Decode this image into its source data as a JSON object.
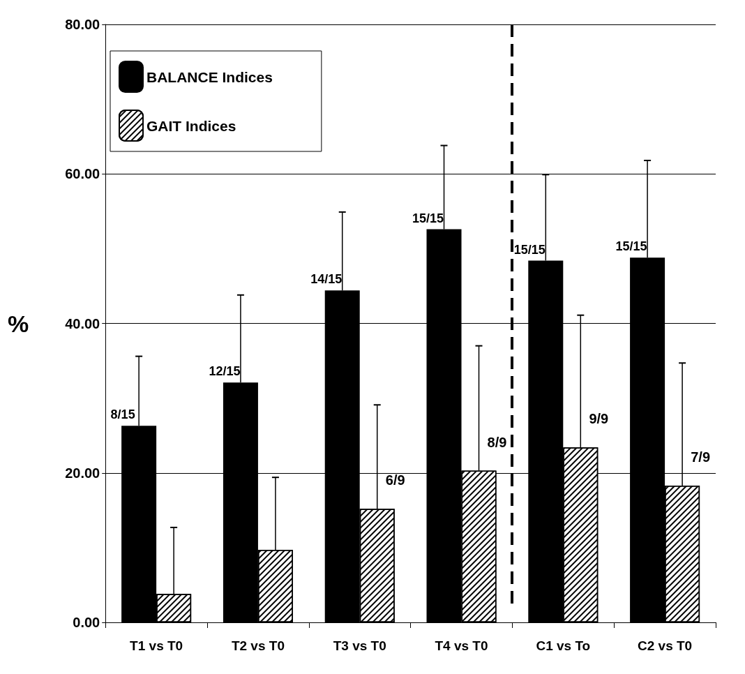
{
  "chart_data": {
    "type": "bar",
    "ylabel": "%",
    "categories": [
      "T1 vs T0",
      "T2 vs T0",
      "T3 vs T0",
      "T4 vs T0",
      "C1 vs To",
      "C2 vs T0"
    ],
    "series": [
      {
        "name": "BALANCE Indices",
        "color": "#000000",
        "values": [
          26.3,
          32.1,
          44.4,
          52.6,
          48.4,
          48.8
        ],
        "errors": [
          9.3,
          11.7,
          10.5,
          11.2,
          11.5,
          13.0
        ],
        "value_labels": [
          "8/15",
          "12/15",
          "14/15",
          "15/15",
          "15/15",
          "15/15"
        ]
      },
      {
        "name": "GAIT Indices",
        "color": "#ffffff",
        "values": [
          3.8,
          9.7,
          15.2,
          20.3,
          23.4,
          18.3
        ],
        "errors": [
          8.9,
          9.7,
          13.9,
          16.7,
          17.7,
          16.4
        ],
        "value_labels": [
          null,
          null,
          "6/9",
          "8/9",
          "9/9",
          "7/9"
        ]
      }
    ],
    "ylim": [
      0,
      80
    ],
    "yticks": [
      {
        "value": 0,
        "label": "0.00"
      },
      {
        "value": 20,
        "label": "20.00"
      },
      {
        "value": 40,
        "label": "40.00"
      },
      {
        "value": 60,
        "label": "60.00"
      },
      {
        "value": 80,
        "label": "80.00"
      }
    ],
    "grid": "y",
    "legend": "top left"
  }
}
